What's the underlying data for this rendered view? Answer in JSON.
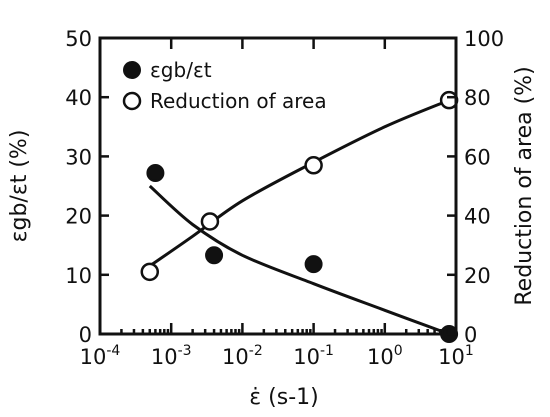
{
  "chart_data": {
    "type": "scatter",
    "xlabel": "ε̇ (s-1)",
    "ylabel_left": "εgb/εt (%)",
    "ylabel_right": "Reduction of area (%)",
    "x_scale": "log",
    "xlim": [
      0.0001,
      10
    ],
    "ylim_left": [
      0,
      50
    ],
    "ylim_right": [
      0,
      100
    ],
    "x_ticks": [
      {
        "value": 0.0001,
        "base": "10",
        "exp": "-4"
      },
      {
        "value": 0.001,
        "base": "10",
        "exp": "-3"
      },
      {
        "value": 0.01,
        "base": "10",
        "exp": "-2"
      },
      {
        "value": 0.1,
        "base": "10",
        "exp": "-1"
      },
      {
        "value": 1,
        "base": "10",
        "exp": "0"
      },
      {
        "value": 10,
        "base": "10",
        "exp": "1"
      }
    ],
    "y_ticks_left": [
      0,
      10,
      20,
      30,
      40,
      50
    ],
    "y_ticks_right": [
      0,
      20,
      40,
      60,
      80,
      100
    ],
    "legend_position": "top-left",
    "series": [
      {
        "name": "εgb/εt",
        "marker": "filled-circle",
        "axis": "left",
        "points": [
          {
            "x": 0.0006,
            "y": 27.2
          },
          {
            "x": 0.004,
            "y": 13.3
          },
          {
            "x": 0.1,
            "y": 11.8
          },
          {
            "x": 8,
            "y": 0
          }
        ],
        "trend": [
          {
            "x": 0.0005,
            "y": 25.0
          },
          {
            "x": 0.002,
            "y": 18.5
          },
          {
            "x": 0.01,
            "y": 13.3
          },
          {
            "x": 0.1,
            "y": 8.5
          },
          {
            "x": 1,
            "y": 4.0
          },
          {
            "x": 8,
            "y": 0
          }
        ]
      },
      {
        "name": "Reduction of area",
        "marker": "open-circle",
        "axis": "right",
        "points": [
          {
            "x": 0.0005,
            "y": 21
          },
          {
            "x": 0.0035,
            "y": 38
          },
          {
            "x": 0.1,
            "y": 57
          },
          {
            "x": 8,
            "y": 79
          }
        ],
        "trend": [
          {
            "x": 0.0005,
            "y": 23
          },
          {
            "x": 0.002,
            "y": 33
          },
          {
            "x": 0.01,
            "y": 45
          },
          {
            "x": 0.1,
            "y": 58
          },
          {
            "x": 1,
            "y": 70
          },
          {
            "x": 8,
            "y": 79
          }
        ]
      }
    ]
  }
}
